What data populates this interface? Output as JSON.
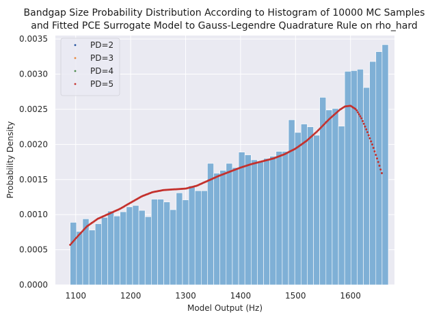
{
  "chart_data": {
    "type": "bar",
    "title_lines": [
      "Bandgap Size Probability Distribution According to Histogram of 10000 MC Samples",
      "and Fitted PCE Surrogate Model to Gauss-Legendre Quadrature Rule on rho_hard"
    ],
    "xlabel": "Model Output (Hz)",
    "ylabel": "Probability Density",
    "xlim": [
      1063,
      1680
    ],
    "ylim": [
      0,
      0.00355
    ],
    "x_ticks": [
      1100,
      1200,
      1300,
      1400,
      1500,
      1600
    ],
    "x_tick_labels": [
      "1100",
      "1200",
      "1300",
      "1400",
      "1500",
      "1600"
    ],
    "y_ticks": [
      0,
      0.0005,
      0.001,
      0.0015,
      0.002,
      0.0025,
      0.003,
      0.0035
    ],
    "y_tick_labels": [
      "0.0000",
      "0.0005",
      "0.0010",
      "0.0015",
      "0.0020",
      "0.0025",
      "0.0030",
      "0.0035"
    ],
    "grid": true,
    "legend_position": "top-left",
    "colors": {
      "background": "#eaeaf2",
      "grid": "#ffffff",
      "histogram": "#7fb0d6",
      "histogram_edge": "#ffffff"
    },
    "histogram": {
      "bin_start": 1090,
      "bin_width": 11.35,
      "values": [
        0.00089,
        0.00076,
        0.00094,
        0.00078,
        0.00087,
        0.00096,
        0.00105,
        0.00098,
        0.00104,
        0.00111,
        0.00113,
        0.00106,
        0.00097,
        0.00122,
        0.00122,
        0.00118,
        0.00107,
        0.00131,
        0.00121,
        0.00141,
        0.00134,
        0.00134,
        0.00173,
        0.00159,
        0.00163,
        0.00173,
        0.00167,
        0.00189,
        0.00185,
        0.00178,
        0.00175,
        0.0018,
        0.00183,
        0.0019,
        0.0019,
        0.00235,
        0.00217,
        0.00229,
        0.00225,
        0.00213,
        0.00267,
        0.00249,
        0.00251,
        0.00226,
        0.00304,
        0.00305,
        0.00307,
        0.00281,
        0.00318,
        0.00332,
        0.00342
      ]
    },
    "series": [
      {
        "name": "PD=2",
        "color": "#1f4e9c"
      },
      {
        "name": "PD=3",
        "color": "#e8863a"
      },
      {
        "name": "PD=4",
        "color": "#4c8a4c"
      },
      {
        "name": "PD=5",
        "color": "#c4312d"
      }
    ],
    "curve": {
      "x": [
        1090,
        1100,
        1120,
        1140,
        1160,
        1180,
        1200,
        1220,
        1240,
        1260,
        1280,
        1300,
        1320,
        1340,
        1360,
        1380,
        1400,
        1420,
        1440,
        1460,
        1480,
        1500,
        1520,
        1540,
        1560,
        1580,
        1590,
        1600,
        1610,
        1620,
        1630,
        1640,
        1650,
        1657
      ],
      "y": [
        0.00057,
        0.00066,
        0.00083,
        0.00094,
        0.00101,
        0.00108,
        0.00117,
        0.00126,
        0.00132,
        0.00135,
        0.00136,
        0.00137,
        0.00141,
        0.00148,
        0.00155,
        0.00161,
        0.00167,
        0.00172,
        0.00176,
        0.0018,
        0.00186,
        0.00194,
        0.00205,
        0.00219,
        0.00235,
        0.00249,
        0.00254,
        0.00255,
        0.0025,
        0.00237,
        0.00219,
        0.00199,
        0.00176,
        0.00159
      ]
    }
  }
}
